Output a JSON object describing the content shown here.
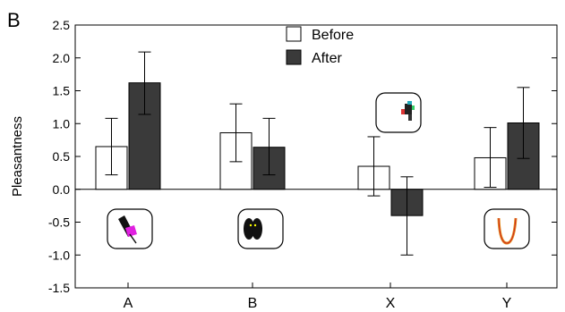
{
  "panel_label": "B",
  "chart_data": {
    "type": "bar",
    "categories": [
      "A",
      "B",
      "X",
      "Y"
    ],
    "ylabel": "Pleasantness",
    "xlabel": "",
    "ylim": [
      -1.5,
      2.5
    ],
    "yticks": [
      2.5,
      2.0,
      1.5,
      1.0,
      0.5,
      0.0,
      -0.5,
      -1.0,
      -1.5
    ],
    "ytick_labels": [
      "2.5",
      "2.0",
      "1.5",
      "1.0",
      "0.5",
      "0.0",
      "-0.5",
      "-1.0",
      "-1.5"
    ],
    "grid": false,
    "legend_position": "top-center",
    "series": [
      {
        "name": "Before",
        "color": "#ffffff",
        "values": [
          0.65,
          0.86,
          0.35,
          0.48
        ],
        "error_low": [
          0.22,
          0.42,
          -0.1,
          0.03
        ],
        "error_high": [
          1.08,
          1.3,
          0.8,
          0.94
        ]
      },
      {
        "name": "After",
        "color": "#3a3a3a",
        "values": [
          1.62,
          0.64,
          -0.4,
          1.01
        ],
        "error_low": [
          1.14,
          0.22,
          -1.0,
          0.47
        ],
        "error_high": [
          2.09,
          1.08,
          0.19,
          1.55
        ]
      }
    ],
    "stimulus_icons": [
      {
        "category": "A",
        "icon": "pink-object-icon"
      },
      {
        "category": "B",
        "icon": "black-ovals-icon"
      },
      {
        "category": "X",
        "icon": "colored-figure-icon"
      },
      {
        "category": "Y",
        "icon": "orange-u-shape-icon"
      }
    ]
  }
}
